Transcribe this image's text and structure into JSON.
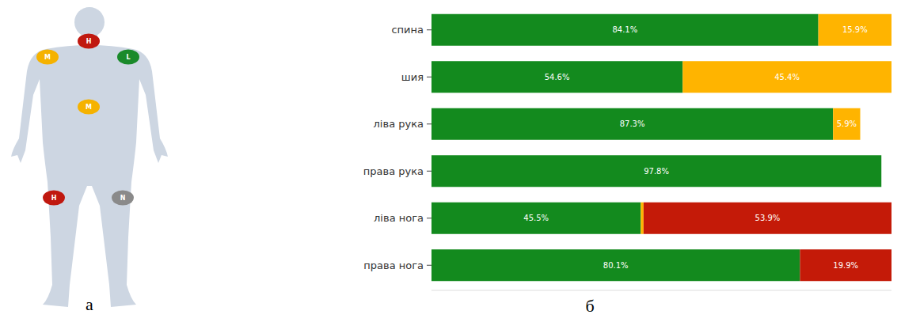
{
  "chart_data": {
    "type": "bar",
    "orientation": "horizontal",
    "stacked": true,
    "data_labels": true,
    "tick_labels": "y",
    "categories": [
      "спина",
      "шия",
      "ліва рука",
      "права рука",
      "ліва нога",
      "права нога"
    ],
    "xlim": [
      0,
      100
    ],
    "series": [
      {
        "color": "#138a1e",
        "values": [
          84.1,
          54.6,
          87.3,
          97.8,
          45.5,
          80.1
        ],
        "value_labels": [
          "84.1%",
          "54.6%",
          "87.3%",
          "97.8%",
          "45.5%",
          "80.1%"
        ]
      },
      {
        "color": "#ffb400",
        "values": [
          15.9,
          45.4,
          5.9,
          null,
          0.6,
          null
        ],
        "value_labels": [
          "15.9%",
          "45.4%",
          "5.9%",
          null,
          null,
          null
        ]
      },
      {
        "color": "#c41a08",
        "values": [
          null,
          null,
          null,
          null,
          53.9,
          19.9
        ],
        "value_labels": [
          null,
          null,
          null,
          null,
          "53.9%",
          "19.9%"
        ]
      }
    ]
  },
  "diagram": {
    "markers": [
      {
        "label": "H",
        "color": "#c0180f"
      },
      {
        "label": "M",
        "color": "#f5b200"
      },
      {
        "label": "L",
        "color": "#1a8a2a"
      },
      {
        "label": "M",
        "color": "#f5b200"
      },
      {
        "label": "H",
        "color": "#c0180f"
      },
      {
        "label": "N",
        "color": "#8a8a8a"
      }
    ]
  },
  "panel_labels": [
    "а",
    "б"
  ]
}
